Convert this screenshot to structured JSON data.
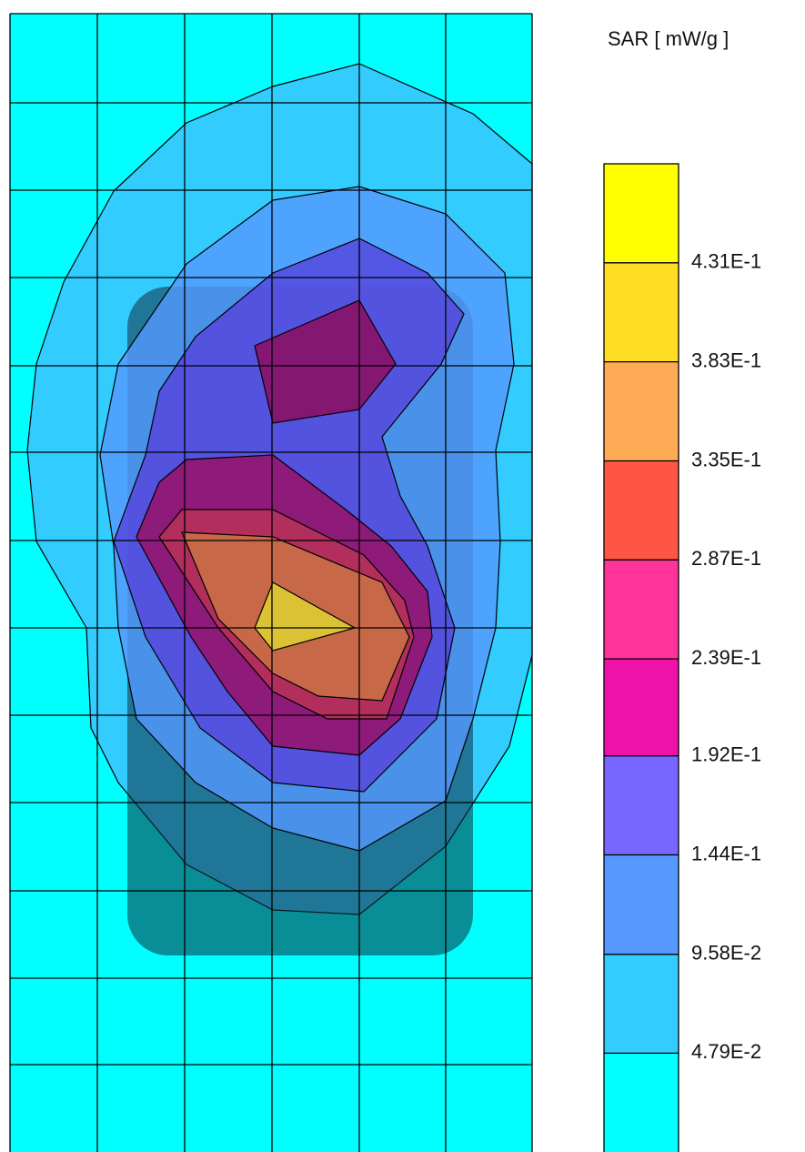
{
  "chart_data": {
    "type": "contour",
    "title": "SAR [ mW/g ]",
    "clim": [
      0,
      0.479
    ],
    "yticks": [
      {
        "value": 0.0479,
        "label": "4.79E-2"
      },
      {
        "value": 0.0958,
        "label": "9.58E-2"
      },
      {
        "value": 0.144,
        "label": "1.44E-1"
      },
      {
        "value": 0.192,
        "label": "1.92E-1"
      },
      {
        "value": 0.239,
        "label": "2.39E-1"
      },
      {
        "value": 0.287,
        "label": "2.87E-1"
      },
      {
        "value": 0.335,
        "label": "3.35E-1"
      },
      {
        "value": 0.383,
        "label": "3.83E-1"
      },
      {
        "value": 0.431,
        "label": "4.31E-1"
      }
    ],
    "band_colors": [
      "#00ffff",
      "#33ccff",
      "#5599ff",
      "#7766ff",
      "#ee11aa",
      "#ff3399",
      "#ff5544",
      "#ffaa55",
      "#ffdd22",
      "#ffff00"
    ]
  }
}
